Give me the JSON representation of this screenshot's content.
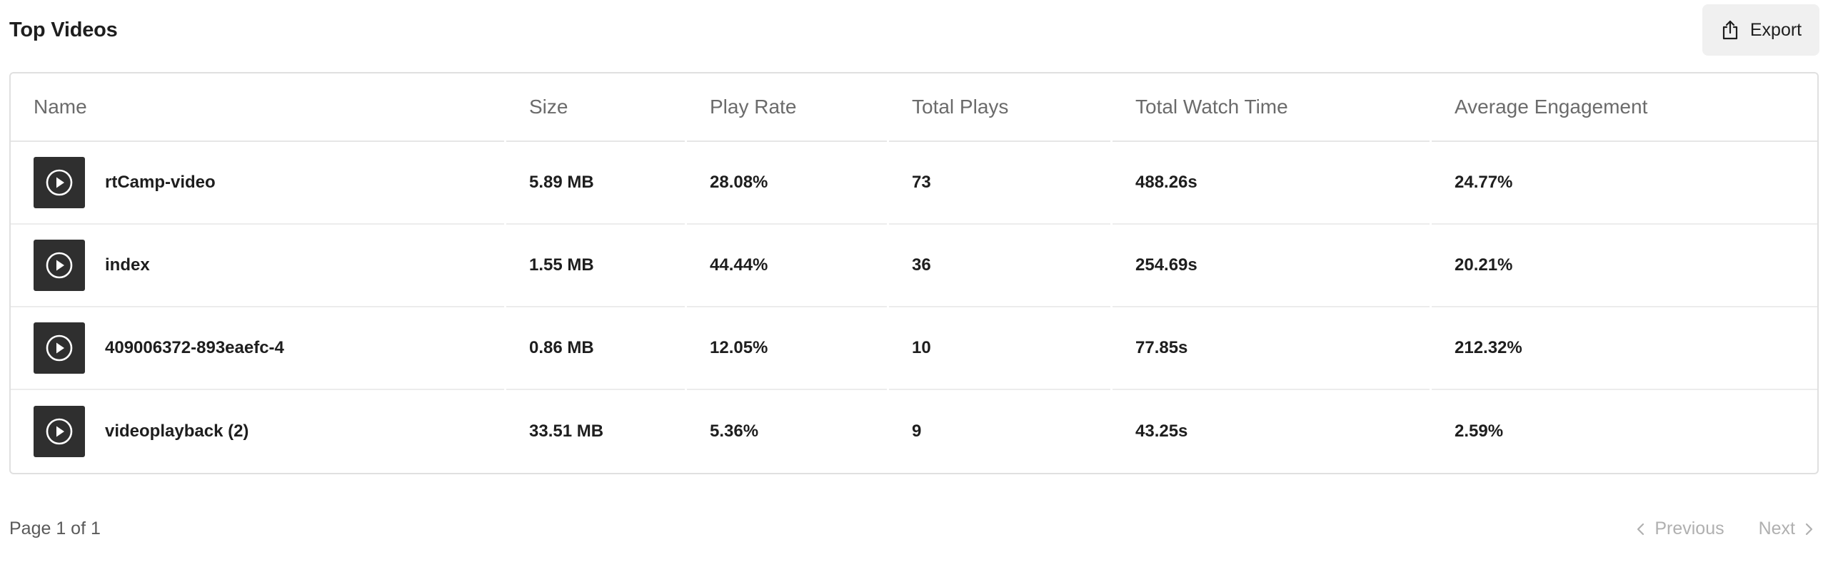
{
  "header": {
    "title": "Top Videos",
    "export_label": "Export"
  },
  "table": {
    "columns": [
      "Name",
      "Size",
      "Play Rate",
      "Total Plays",
      "Total Watch Time",
      "Average Engagement"
    ],
    "rows": [
      {
        "name": "rtCamp-video",
        "size": "5.89 MB",
        "play_rate": "28.08%",
        "total_plays": "73",
        "watch_time": "488.26s",
        "engagement": "24.77%"
      },
      {
        "name": "index",
        "size": "1.55 MB",
        "play_rate": "44.44%",
        "total_plays": "36",
        "watch_time": "254.69s",
        "engagement": "20.21%"
      },
      {
        "name": "409006372-893eaefc-4",
        "size": "0.86 MB",
        "play_rate": "12.05%",
        "total_plays": "10",
        "watch_time": "77.85s",
        "engagement": "212.32%"
      },
      {
        "name": "videoplayback (2)",
        "size": "33.51 MB",
        "play_rate": "5.36%",
        "total_plays": "9",
        "watch_time": "43.25s",
        "engagement": "2.59%"
      }
    ]
  },
  "pagination": {
    "page_label": "Page 1 of 1",
    "previous_label": "Previous",
    "next_label": "Next"
  },
  "icons": {
    "export": "export-upload-icon",
    "thumbnail": "play-circle-icon",
    "previous": "chevron-left-icon",
    "next": "chevron-right-icon"
  }
}
